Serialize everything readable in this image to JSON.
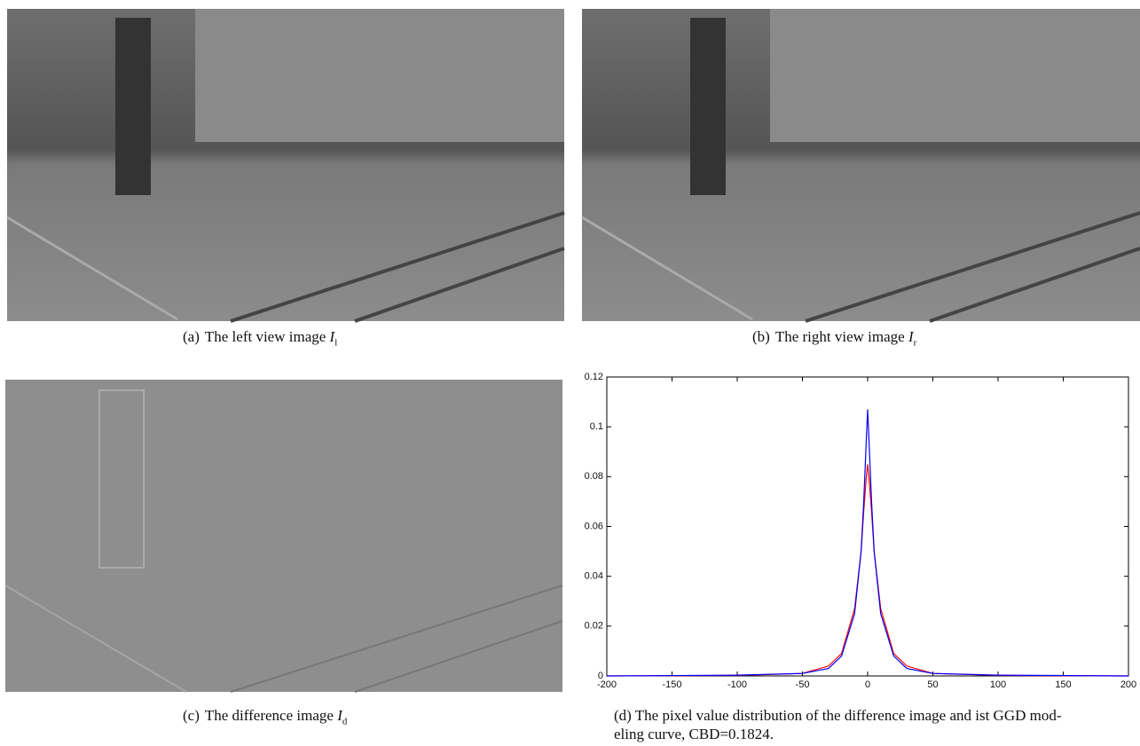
{
  "panels": [
    {
      "label": "(a)",
      "caption": "The left view image",
      "symbol": "I",
      "subscript": "l"
    },
    {
      "label": "(b)",
      "caption": "The right view image",
      "symbol": "I",
      "subscript": "r"
    },
    {
      "label": "(c)",
      "caption": "The difference image",
      "symbol": "I",
      "subscript": "d"
    }
  ],
  "chart_caption": {
    "lines": [
      "(d)  The pixel value distribution of the difference image and ist GGD mod-",
      "eling curve, CBD=0.1824."
    ]
  },
  "chart_data": {
    "type": "line",
    "x": [
      -200,
      -100,
      -50,
      -30,
      -20,
      -10,
      -5,
      -3,
      -1,
      0,
      1,
      3,
      5,
      10,
      20,
      30,
      50,
      100,
      200
    ],
    "series": [
      {
        "color": "#ff0000",
        "values": [
          0,
          0.0002,
          0.001,
          0.004,
          0.009,
          0.027,
          0.05,
          0.066,
          0.08,
          0.085,
          0.08,
          0.066,
          0.05,
          0.027,
          0.009,
          0.004,
          0.001,
          0.0002,
          0
        ]
      },
      {
        "color": "#0000ff",
        "values": [
          0,
          0.0003,
          0.001,
          0.003,
          0.008,
          0.025,
          0.05,
          0.07,
          0.095,
          0.107,
          0.095,
          0.07,
          0.05,
          0.025,
          0.008,
          0.003,
          0.001,
          0.0003,
          0
        ]
      }
    ],
    "xlim": [
      -200,
      200
    ],
    "ylim": [
      0,
      0.12
    ],
    "xticks": [
      -200,
      -150,
      -100,
      -50,
      0,
      50,
      100,
      150,
      200
    ],
    "yticks": [
      0,
      0.02,
      0.04,
      0.06,
      0.08,
      0.1,
      0.12
    ]
  }
}
